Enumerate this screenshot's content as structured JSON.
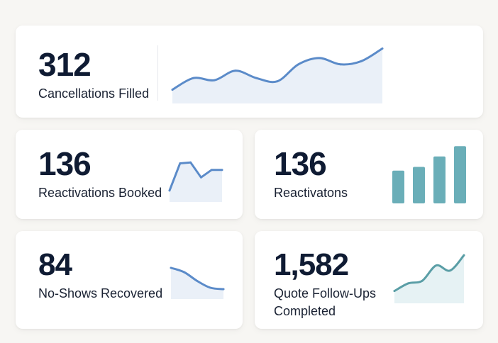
{
  "colors": {
    "line_blue": "#5b8bc9",
    "area_blue": "#eaf0f8",
    "line_teal": "#5a9ea6",
    "bar_teal": "#6aaeb8",
    "area_teal": "#e6f2f4"
  },
  "cards": [
    {
      "value": "312",
      "label": "Cancellations Filled",
      "chart_data": {
        "type": "area",
        "values": [
          22,
          44,
          40,
          58,
          44,
          38,
          70,
          82,
          70,
          76,
          100
        ],
        "ylim": [
          0,
          110
        ]
      }
    },
    {
      "value": "136",
      "label": "Reactivations Booked",
      "chart_data": {
        "type": "area",
        "values": [
          20,
          78,
          80,
          48,
          64,
          64
        ],
        "ylim": [
          0,
          100
        ]
      }
    },
    {
      "value": "136",
      "label": "Reactivatons",
      "chart_data": {
        "type": "bar",
        "values": [
          44,
          49,
          63,
          77
        ],
        "ylim": [
          0,
          80
        ]
      }
    },
    {
      "value": "84",
      "label": "No-Shows Recovered",
      "chart_data": {
        "type": "area",
        "values": [
          82,
          70,
          45,
          26,
          22
        ],
        "ylim": [
          0,
          100
        ]
      }
    },
    {
      "value": "1,582",
      "label_lines": [
        "Quote Follow-Ups",
        "Completed"
      ],
      "chart_data": {
        "type": "area",
        "values": [
          20,
          35,
          40,
          70,
          60,
          90
        ],
        "ylim": [
          0,
          100
        ]
      }
    }
  ]
}
